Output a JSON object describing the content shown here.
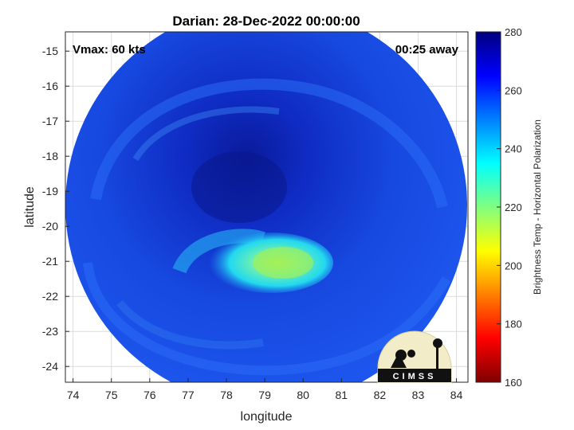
{
  "chart_data": {
    "type": "heatmap",
    "title": "Darian: 28-Dec-2022 00:00:00",
    "xlabel": "longitude",
    "ylabel": "latitude",
    "xlim": [
      73.8,
      84.3
    ],
    "ylim": [
      -24.45,
      -14.45
    ],
    "xticks": [
      74,
      75,
      76,
      77,
      78,
      79,
      80,
      81,
      82,
      83,
      84
    ],
    "yticks": [
      -15,
      -16,
      -17,
      -18,
      -19,
      -20,
      -21,
      -22,
      -23,
      -24
    ],
    "grid": true,
    "colorbar": {
      "label": "Brightness Temp - Horizontal Polarization",
      "range": [
        160,
        280
      ],
      "ticks": [
        160,
        180,
        200,
        220,
        240,
        260,
        280
      ],
      "colormap": "jet"
    },
    "annotations": {
      "vmax": "Vmax: 60 kts",
      "time_offset": "00:25 away"
    },
    "swath": {
      "center_lon": 79.05,
      "center_lat": -19.5,
      "shape": "circle"
    },
    "features": [
      {
        "name": "cold band (south of center)",
        "lon": 79.6,
        "lat": -21.2,
        "value": 212
      },
      {
        "name": "warm eye region",
        "lon": 78.9,
        "lat": -19.0,
        "value": 272
      }
    ],
    "logo": "CIMSS"
  }
}
